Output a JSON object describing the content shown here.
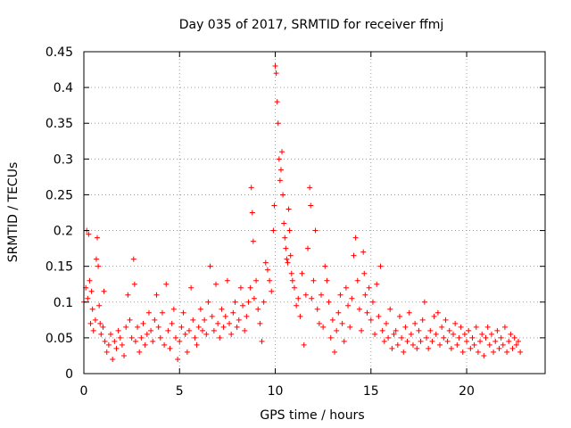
{
  "chart_data": {
    "type": "scatter",
    "title": "Day 035 of 2017, SRMTID for receiver ffmj",
    "xlabel": "GPS time / hours",
    "ylabel": "SRMTID / TECUs",
    "xlim": [
      0,
      24.1
    ],
    "ylim": [
      0,
      0.45
    ],
    "xticks": [
      0,
      5,
      10,
      15,
      20
    ],
    "xtick_labels": [
      "0",
      "5",
      "10",
      "15",
      "20"
    ],
    "yticks": [
      0,
      0.05,
      0.1,
      0.15,
      0.2,
      0.25,
      0.3,
      0.35,
      0.4,
      0.45
    ],
    "ytick_labels": [
      "0",
      "0.05",
      "0.1",
      "0.15",
      "0.2",
      "0.25",
      "0.3",
      "0.35",
      "0.4",
      "0.45"
    ],
    "grid": true,
    "marker": "+",
    "series": [
      {
        "name": "SRMTID",
        "color": "#ff0000",
        "points": [
          [
            0.0,
            0.1
          ],
          [
            0.1,
            0.12
          ],
          [
            0.15,
            0.2
          ],
          [
            0.2,
            0.105
          ],
          [
            0.25,
            0.195
          ],
          [
            0.3,
            0.13
          ],
          [
            0.35,
            0.07
          ],
          [
            0.4,
            0.115
          ],
          [
            0.45,
            0.09
          ],
          [
            0.5,
            0.06
          ],
          [
            0.6,
            0.075
          ],
          [
            0.65,
            0.16
          ],
          [
            0.7,
            0.19
          ],
          [
            0.75,
            0.15
          ],
          [
            0.8,
            0.095
          ],
          [
            0.85,
            0.07
          ],
          [
            0.9,
            0.055
          ],
          [
            1.0,
            0.065
          ],
          [
            1.05,
            0.115
          ],
          [
            1.1,
            0.045
          ],
          [
            1.2,
            0.03
          ],
          [
            1.3,
            0.04
          ],
          [
            1.4,
            0.055
          ],
          [
            1.5,
            0.02
          ],
          [
            1.6,
            0.045
          ],
          [
            1.7,
            0.035
          ],
          [
            1.8,
            0.06
          ],
          [
            1.9,
            0.05
          ],
          [
            2.0,
            0.04
          ],
          [
            2.1,
            0.025
          ],
          [
            2.2,
            0.065
          ],
          [
            2.3,
            0.11
          ],
          [
            2.4,
            0.075
          ],
          [
            2.5,
            0.05
          ],
          [
            2.6,
            0.16
          ],
          [
            2.65,
            0.125
          ],
          [
            2.7,
            0.045
          ],
          [
            2.8,
            0.065
          ],
          [
            2.9,
            0.03
          ],
          [
            3.0,
            0.05
          ],
          [
            3.1,
            0.07
          ],
          [
            3.2,
            0.04
          ],
          [
            3.3,
            0.055
          ],
          [
            3.4,
            0.085
          ],
          [
            3.5,
            0.06
          ],
          [
            3.6,
            0.045
          ],
          [
            3.7,
            0.075
          ],
          [
            3.8,
            0.11
          ],
          [
            3.9,
            0.065
          ],
          [
            4.0,
            0.05
          ],
          [
            4.1,
            0.085
          ],
          [
            4.2,
            0.04
          ],
          [
            4.3,
            0.125
          ],
          [
            4.4,
            0.06
          ],
          [
            4.5,
            0.035
          ],
          [
            4.6,
            0.07
          ],
          [
            4.7,
            0.09
          ],
          [
            4.8,
            0.05
          ],
          [
            4.9,
            0.02
          ],
          [
            5.0,
            0.045
          ],
          [
            5.1,
            0.065
          ],
          [
            5.2,
            0.085
          ],
          [
            5.3,
            0.055
          ],
          [
            5.4,
            0.03
          ],
          [
            5.5,
            0.06
          ],
          [
            5.6,
            0.12
          ],
          [
            5.7,
            0.075
          ],
          [
            5.8,
            0.05
          ],
          [
            5.9,
            0.04
          ],
          [
            6.0,
            0.065
          ],
          [
            6.1,
            0.09
          ],
          [
            6.2,
            0.06
          ],
          [
            6.3,
            0.075
          ],
          [
            6.4,
            0.055
          ],
          [
            6.5,
            0.1
          ],
          [
            6.6,
            0.15
          ],
          [
            6.7,
            0.08
          ],
          [
            6.8,
            0.06
          ],
          [
            6.9,
            0.125
          ],
          [
            7.0,
            0.07
          ],
          [
            7.1,
            0.05
          ],
          [
            7.2,
            0.09
          ],
          [
            7.3,
            0.065
          ],
          [
            7.4,
            0.08
          ],
          [
            7.5,
            0.13
          ],
          [
            7.6,
            0.07
          ],
          [
            7.7,
            0.055
          ],
          [
            7.8,
            0.085
          ],
          [
            7.9,
            0.1
          ],
          [
            8.0,
            0.065
          ],
          [
            8.1,
            0.075
          ],
          [
            8.2,
            0.12
          ],
          [
            8.3,
            0.095
          ],
          [
            8.4,
            0.06
          ],
          [
            8.5,
            0.08
          ],
          [
            8.6,
            0.1
          ],
          [
            8.7,
            0.12
          ],
          [
            8.75,
            0.26
          ],
          [
            8.8,
            0.225
          ],
          [
            8.85,
            0.185
          ],
          [
            8.9,
            0.105
          ],
          [
            9.0,
            0.13
          ],
          [
            9.1,
            0.09
          ],
          [
            9.2,
            0.07
          ],
          [
            9.3,
            0.045
          ],
          [
            9.4,
            0.1
          ],
          [
            9.5,
            0.155
          ],
          [
            9.6,
            0.145
          ],
          [
            9.7,
            0.13
          ],
          [
            9.8,
            0.115
          ],
          [
            9.9,
            0.2
          ],
          [
            9.95,
            0.235
          ],
          [
            10.0,
            0.43
          ],
          [
            10.05,
            0.42
          ],
          [
            10.1,
            0.38
          ],
          [
            10.15,
            0.35
          ],
          [
            10.2,
            0.3
          ],
          [
            10.25,
            0.27
          ],
          [
            10.3,
            0.285
          ],
          [
            10.35,
            0.31
          ],
          [
            10.4,
            0.25
          ],
          [
            10.45,
            0.21
          ],
          [
            10.5,
            0.19
          ],
          [
            10.55,
            0.175
          ],
          [
            10.6,
            0.16
          ],
          [
            10.65,
            0.155
          ],
          [
            10.7,
            0.23
          ],
          [
            10.75,
            0.2
          ],
          [
            10.8,
            0.165
          ],
          [
            10.85,
            0.14
          ],
          [
            10.9,
            0.13
          ],
          [
            11.0,
            0.12
          ],
          [
            11.1,
            0.095
          ],
          [
            11.2,
            0.105
          ],
          [
            11.3,
            0.08
          ],
          [
            11.4,
            0.14
          ],
          [
            11.5,
            0.04
          ],
          [
            11.6,
            0.11
          ],
          [
            11.7,
            0.175
          ],
          [
            11.8,
            0.26
          ],
          [
            11.85,
            0.235
          ],
          [
            11.9,
            0.105
          ],
          [
            12.0,
            0.13
          ],
          [
            12.1,
            0.2
          ],
          [
            12.2,
            0.09
          ],
          [
            12.3,
            0.07
          ],
          [
            12.4,
            0.11
          ],
          [
            12.5,
            0.065
          ],
          [
            12.6,
            0.15
          ],
          [
            12.7,
            0.13
          ],
          [
            12.8,
            0.1
          ],
          [
            12.9,
            0.05
          ],
          [
            13.0,
            0.075
          ],
          [
            13.1,
            0.03
          ],
          [
            13.2,
            0.06
          ],
          [
            13.3,
            0.085
          ],
          [
            13.4,
            0.11
          ],
          [
            13.5,
            0.07
          ],
          [
            13.6,
            0.045
          ],
          [
            13.7,
            0.12
          ],
          [
            13.8,
            0.095
          ],
          [
            13.9,
            0.065
          ],
          [
            14.0,
            0.105
          ],
          [
            14.1,
            0.165
          ],
          [
            14.2,
            0.19
          ],
          [
            14.3,
            0.13
          ],
          [
            14.4,
            0.09
          ],
          [
            14.5,
            0.06
          ],
          [
            14.6,
            0.17
          ],
          [
            14.65,
            0.14
          ],
          [
            14.7,
            0.11
          ],
          [
            14.8,
            0.085
          ],
          [
            14.9,
            0.12
          ],
          [
            15.0,
            0.075
          ],
          [
            15.1,
            0.1
          ],
          [
            15.2,
            0.055
          ],
          [
            15.3,
            0.125
          ],
          [
            15.4,
            0.08
          ],
          [
            15.5,
            0.15
          ],
          [
            15.6,
            0.06
          ],
          [
            15.7,
            0.045
          ],
          [
            15.8,
            0.07
          ],
          [
            15.9,
            0.05
          ],
          [
            16.0,
            0.09
          ],
          [
            16.1,
            0.035
          ],
          [
            16.2,
            0.055
          ],
          [
            16.3,
            0.06
          ],
          [
            16.4,
            0.04
          ],
          [
            16.5,
            0.08
          ],
          [
            16.6,
            0.05
          ],
          [
            16.7,
            0.03
          ],
          [
            16.8,
            0.065
          ],
          [
            16.9,
            0.045
          ],
          [
            17.0,
            0.085
          ],
          [
            17.1,
            0.055
          ],
          [
            17.2,
            0.04
          ],
          [
            17.3,
            0.07
          ],
          [
            17.4,
            0.035
          ],
          [
            17.5,
            0.06
          ],
          [
            17.6,
            0.045
          ],
          [
            17.7,
            0.075
          ],
          [
            17.8,
            0.1
          ],
          [
            17.9,
            0.05
          ],
          [
            18.0,
            0.035
          ],
          [
            18.1,
            0.06
          ],
          [
            18.2,
            0.045
          ],
          [
            18.3,
            0.08
          ],
          [
            18.4,
            0.055
          ],
          [
            18.5,
            0.085
          ],
          [
            18.6,
            0.04
          ],
          [
            18.7,
            0.065
          ],
          [
            18.8,
            0.05
          ],
          [
            18.9,
            0.075
          ],
          [
            19.0,
            0.045
          ],
          [
            19.1,
            0.06
          ],
          [
            19.2,
            0.035
          ],
          [
            19.3,
            0.055
          ],
          [
            19.4,
            0.07
          ],
          [
            19.5,
            0.04
          ],
          [
            19.6,
            0.05
          ],
          [
            19.7,
            0.065
          ],
          [
            19.8,
            0.03
          ],
          [
            19.9,
            0.055
          ],
          [
            20.0,
            0.045
          ],
          [
            20.1,
            0.06
          ],
          [
            20.2,
            0.035
          ],
          [
            20.3,
            0.05
          ],
          [
            20.4,
            0.04
          ],
          [
            20.5,
            0.065
          ],
          [
            20.6,
            0.03
          ],
          [
            20.7,
            0.045
          ],
          [
            20.8,
            0.055
          ],
          [
            20.9,
            0.025
          ],
          [
            21.0,
            0.05
          ],
          [
            21.1,
            0.065
          ],
          [
            21.2,
            0.04
          ],
          [
            21.3,
            0.055
          ],
          [
            21.4,
            0.03
          ],
          [
            21.5,
            0.045
          ],
          [
            21.6,
            0.06
          ],
          [
            21.7,
            0.035
          ],
          [
            21.8,
            0.05
          ],
          [
            21.9,
            0.04
          ],
          [
            22.0,
            0.065
          ],
          [
            22.1,
            0.03
          ],
          [
            22.2,
            0.045
          ],
          [
            22.3,
            0.055
          ],
          [
            22.4,
            0.035
          ],
          [
            22.5,
            0.05
          ],
          [
            22.6,
            0.04
          ],
          [
            22.7,
            0.045
          ],
          [
            22.8,
            0.03
          ]
        ]
      }
    ]
  }
}
